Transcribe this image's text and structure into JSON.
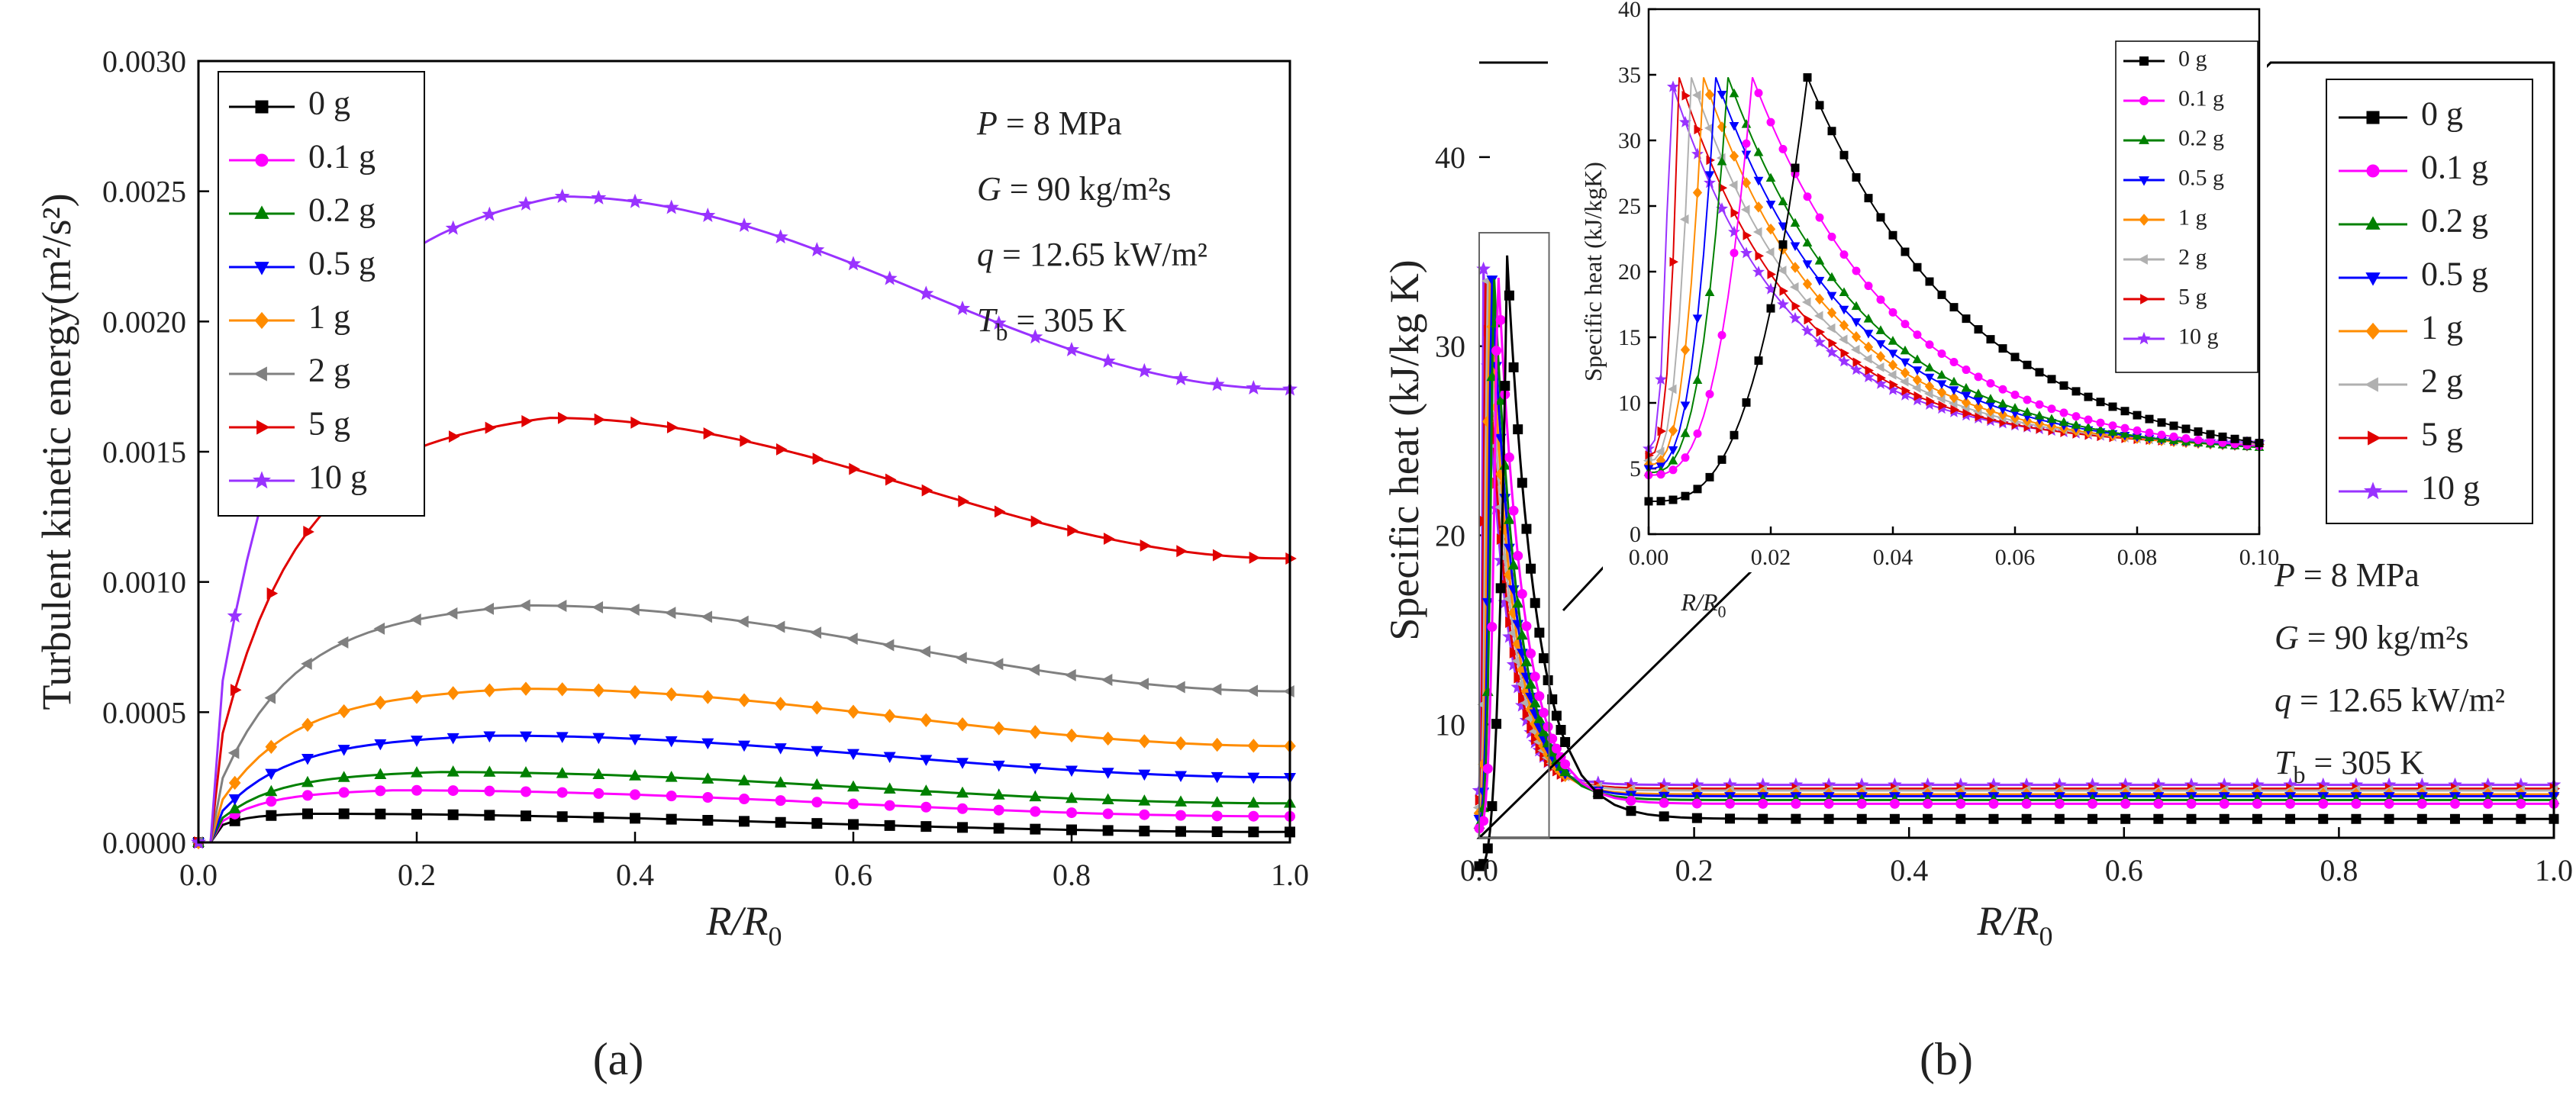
{
  "chart_data": [
    {
      "id": "a",
      "type": "line",
      "caption": "(a)",
      "ylabel": "Turbulent kinetic energy(m²/s²)",
      "xlabel": {
        "main": "R/R",
        "sub": "0"
      },
      "xlim": [
        0,
        1.0
      ],
      "ylim": [
        0,
        0.003
      ],
      "xticks": [
        "0.0",
        "0.2",
        "0.4",
        "0.6",
        "0.8",
        "1.0"
      ],
      "yticks": [
        "0.0000",
        "0.0005",
        "0.0010",
        "0.0015",
        "0.0020",
        "0.0025",
        "0.0030"
      ],
      "annotations": {
        "P": {
          "sym": "P",
          "rest": " = 8 MPa"
        },
        "G": {
          "sym": "G",
          "rest": " = 90 kg/m²s"
        },
        "q": {
          "sym": "q",
          "rest": " = 12.65 kW/m²"
        },
        "T": {
          "sym": "T",
          "sub": "b",
          "rest": " = 305 K"
        }
      },
      "series": [
        {
          "name": "0 g",
          "color": "#000000",
          "marker": "square",
          "peak_x": 0.1,
          "peak": 0.00011,
          "end": 4e-05
        },
        {
          "name": "0.1 g",
          "color": "#ff00ff",
          "marker": "circle",
          "peak_x": 0.18,
          "peak": 0.0002,
          "end": 0.0001
        },
        {
          "name": "0.2 g",
          "color": "#008000",
          "marker": "triangle-up",
          "peak_x": 0.22,
          "peak": 0.00027,
          "end": 0.00015
        },
        {
          "name": "0.5 g",
          "color": "#0000ff",
          "marker": "triangle-down",
          "peak_x": 0.27,
          "peak": 0.00041,
          "end": 0.00025
        },
        {
          "name": "1 g",
          "color": "#ff8c00",
          "marker": "diamond",
          "peak_x": 0.29,
          "peak": 0.00059,
          "end": 0.00037
        },
        {
          "name": "2 g",
          "color": "#808080",
          "marker": "triangle-left",
          "peak_x": 0.3,
          "peak": 0.00091,
          "end": 0.00058
        },
        {
          "name": "5 g",
          "color": "#e00000",
          "marker": "triangle-right",
          "peak_x": 0.32,
          "peak": 0.00163,
          "end": 0.00109
        },
        {
          "name": "10 g",
          "color": "#9932ff",
          "marker": "star",
          "peak_x": 0.33,
          "peak": 0.00248,
          "end": 0.00174
        }
      ]
    },
    {
      "id": "b",
      "type": "line",
      "caption": "(b)",
      "ylabel": "Specific heat (kJ/kg K)",
      "xlabel": {
        "main": "R/R",
        "sub": "0"
      },
      "xlim": [
        0,
        1.0
      ],
      "ylim": [
        4,
        45
      ],
      "xticks": [
        "0.0",
        "0.2",
        "0.4",
        "0.6",
        "0.8",
        "1.0"
      ],
      "yticks": [
        "10",
        "20",
        "30",
        "40"
      ],
      "annotations": {
        "P": {
          "sym": "P",
          "rest": " = 8 MPa"
        },
        "G": {
          "sym": "G",
          "rest": " = 90 kg/m²s"
        },
        "q": {
          "sym": "q",
          "rest": " = 12.65 kW/m²"
        },
        "T": {
          "sym": "T",
          "sub": "b",
          "rest": " = 305 K"
        }
      },
      "series": [
        {
          "name": "0 g",
          "color": "#000000",
          "marker": "square",
          "start": 2.5,
          "peak_x": 0.026,
          "peak": 34.8,
          "end": 5.0
        },
        {
          "name": "0.1 g",
          "color": "#ff00ff",
          "marker": "circle",
          "start": 4.5,
          "peak_x": 0.017,
          "peak": 34.8,
          "end": 5.8
        },
        {
          "name": "0.2 g",
          "color": "#008000",
          "marker": "triangle-up",
          "start": 4.7,
          "peak_x": 0.013,
          "peak": 34.8,
          "end": 6.0
        },
        {
          "name": "0.5 g",
          "color": "#0000ff",
          "marker": "triangle-down",
          "start": 5.0,
          "peak_x": 0.011,
          "peak": 34.8,
          "end": 6.2
        },
        {
          "name": "1 g",
          "color": "#ff8c00",
          "marker": "diamond",
          "start": 5.3,
          "peak_x": 0.009,
          "peak": 34.8,
          "end": 6.3
        },
        {
          "name": "2 g",
          "color": "#b0b0b0",
          "marker": "triangle-left",
          "start": 5.6,
          "peak_x": 0.007,
          "peak": 34.8,
          "end": 6.5
        },
        {
          "name": "5 g",
          "color": "#e00000",
          "marker": "triangle-right",
          "start": 6.0,
          "peak_x": 0.005,
          "peak": 34.8,
          "end": 6.6
        },
        {
          "name": "10 g",
          "color": "#9932ff",
          "marker": "star",
          "start": 6.5,
          "peak_x": 0.0035,
          "peak": 34.8,
          "end": 6.8
        }
      ],
      "inset": {
        "ylabel": "Specific heat (kJ/kgK)",
        "xlabel": {
          "main": "R/R",
          "sub": "0"
        },
        "xlim": [
          0,
          0.1
        ],
        "ylim": [
          0,
          40
        ],
        "xticks": [
          "0.00",
          "0.02",
          "0.04",
          "0.06",
          "0.08",
          "0.10"
        ],
        "yticks": [
          "0",
          "5",
          "10",
          "15",
          "20",
          "25",
          "30",
          "35",
          "40"
        ],
        "zoom_region": {
          "x": [
            0,
            0.065
          ],
          "y": [
            4,
            36
          ]
        }
      }
    }
  ]
}
